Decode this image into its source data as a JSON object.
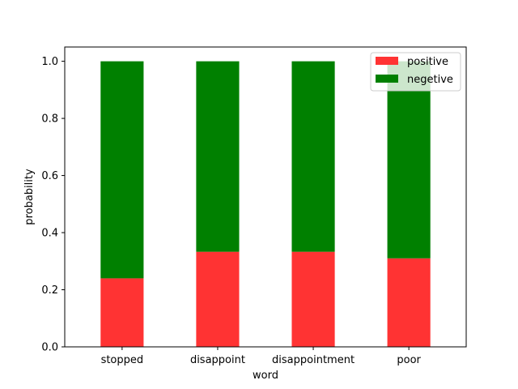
{
  "chart_data": {
    "type": "bar",
    "stacked": true,
    "title": "",
    "xlabel": "word",
    "ylabel": "probability",
    "categories": [
      "stopped",
      "disappoint",
      "disappointment",
      "poor"
    ],
    "series": [
      {
        "name": "positive",
        "color": "#ff3333",
        "values": [
          0.24,
          0.333,
          0.333,
          0.31
        ]
      },
      {
        "name": "negetive",
        "color": "#008000",
        "values": [
          0.76,
          0.667,
          0.667,
          0.69
        ]
      }
    ],
    "ylim": [
      0,
      1.05
    ],
    "yticks": [
      "0.0",
      "0.2",
      "0.4",
      "0.6",
      "0.8",
      "1.0"
    ],
    "grid": false,
    "legend_position": "top-right"
  }
}
